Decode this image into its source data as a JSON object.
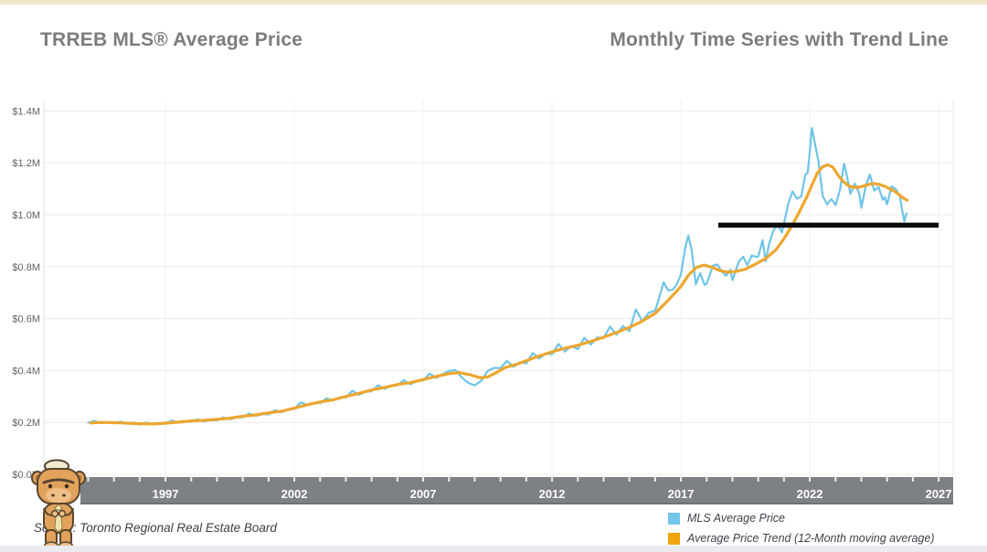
{
  "header": {
    "title_left": "TRREB MLS® Average Price",
    "title_right": "Monthly Time Series with Trend Line"
  },
  "colors": {
    "top_strip": "#efe6c9",
    "bottom_strip": "#e9ebee",
    "axis_band": "#7d8186",
    "title_gray": "#7c7c7c",
    "avg_price_blue": "#6fc4e8",
    "trend_orange": "#eda62e",
    "annotation_black": "#0a0a0a"
  },
  "legend": {
    "items": [
      {
        "label": "MLS Average Price",
        "color": "#74c6e9"
      },
      {
        "label": "Average Price Trend (12-Month moving average)",
        "color": "#f0a40e"
      }
    ]
  },
  "footer": {
    "source": "Source: Toronto Regional Real Estate Board",
    "mascot": "rhino-mascot"
  },
  "chart_data": {
    "type": "line",
    "title": "TRREB MLS® Average Price — Monthly Time Series with Trend Line",
    "grid": true,
    "legend_position": "bottom-right",
    "x_axis": {
      "range": [
        1993.7,
        2027.55
      ],
      "labeled_years": [
        1997,
        2002,
        2007,
        2012,
        2017,
        2022,
        2027
      ],
      "minor_tick_interval_years": 1
    },
    "y_axis": {
      "unit": "CAD millions",
      "range": [
        0,
        1.44
      ],
      "tick_values": [
        0,
        0.2,
        0.4,
        0.6,
        0.8,
        1.0,
        1.2,
        1.4
      ],
      "tick_labels": [
        "$0.0M",
        "$0.2M",
        "$0.4M",
        "$0.6M",
        "$0.8M",
        "$1.0M",
        "$1.2M",
        "$1.4M"
      ]
    },
    "annotation_line": {
      "label": "Trend Line",
      "value": 0.96,
      "x_start": 2018.45,
      "x_end": 2027.0,
      "color": "#0a0a0a"
    },
    "series": [
      {
        "id": "mls-average-price",
        "name": "MLS Average Price",
        "color": "#6fc4e8",
        "points": [
          [
            1994.0,
            0.199
          ],
          [
            1994.25,
            0.206
          ],
          [
            1994.5,
            0.197
          ],
          [
            1994.75,
            0.201
          ],
          [
            1995.0,
            0.197
          ],
          [
            1995.25,
            0.203
          ],
          [
            1995.5,
            0.195
          ],
          [
            1995.75,
            0.199
          ],
          [
            1996.0,
            0.192
          ],
          [
            1996.25,
            0.199
          ],
          [
            1996.5,
            0.193
          ],
          [
            1996.75,
            0.197
          ],
          [
            1997.0,
            0.196
          ],
          [
            1997.25,
            0.207
          ],
          [
            1997.5,
            0.199
          ],
          [
            1997.75,
            0.204
          ],
          [
            1998.0,
            0.203
          ],
          [
            1998.25,
            0.212
          ],
          [
            1998.5,
            0.204
          ],
          [
            1998.75,
            0.209
          ],
          [
            1999.0,
            0.208
          ],
          [
            1999.25,
            0.219
          ],
          [
            1999.5,
            0.212
          ],
          [
            1999.75,
            0.219
          ],
          [
            2000.0,
            0.22
          ],
          [
            2000.25,
            0.234
          ],
          [
            2000.5,
            0.225
          ],
          [
            2000.75,
            0.232
          ],
          [
            2001.0,
            0.231
          ],
          [
            2001.25,
            0.247
          ],
          [
            2001.5,
            0.239
          ],
          [
            2001.75,
            0.25
          ],
          [
            2002.0,
            0.252
          ],
          [
            2002.25,
            0.277
          ],
          [
            2002.5,
            0.266
          ],
          [
            2002.75,
            0.275
          ],
          [
            2003.0,
            0.274
          ],
          [
            2003.25,
            0.293
          ],
          [
            2003.5,
            0.284
          ],
          [
            2003.75,
            0.296
          ],
          [
            2004.0,
            0.296
          ],
          [
            2004.25,
            0.322
          ],
          [
            2004.5,
            0.306
          ],
          [
            2004.75,
            0.318
          ],
          [
            2005.0,
            0.32
          ],
          [
            2005.25,
            0.343
          ],
          [
            2005.5,
            0.329
          ],
          [
            2005.75,
            0.341
          ],
          [
            2006.0,
            0.343
          ],
          [
            2006.25,
            0.363
          ],
          [
            2006.5,
            0.347
          ],
          [
            2006.75,
            0.358
          ],
          [
            2007.0,
            0.362
          ],
          [
            2007.25,
            0.388
          ],
          [
            2007.5,
            0.371
          ],
          [
            2007.75,
            0.386
          ],
          [
            2008.0,
            0.398
          ],
          [
            2008.25,
            0.402
          ],
          [
            2008.5,
            0.372
          ],
          [
            2008.75,
            0.352
          ],
          [
            2009.0,
            0.343
          ],
          [
            2009.25,
            0.36
          ],
          [
            2009.5,
            0.398
          ],
          [
            2009.75,
            0.41
          ],
          [
            2010.0,
            0.409
          ],
          [
            2010.25,
            0.437
          ],
          [
            2010.5,
            0.414
          ],
          [
            2010.75,
            0.432
          ],
          [
            2011.0,
            0.427
          ],
          [
            2011.25,
            0.467
          ],
          [
            2011.5,
            0.446
          ],
          [
            2011.75,
            0.465
          ],
          [
            2012.0,
            0.463
          ],
          [
            2012.25,
            0.502
          ],
          [
            2012.5,
            0.473
          ],
          [
            2012.75,
            0.495
          ],
          [
            2013.0,
            0.482
          ],
          [
            2013.25,
            0.526
          ],
          [
            2013.5,
            0.5
          ],
          [
            2013.75,
            0.527
          ],
          [
            2014.0,
            0.526
          ],
          [
            2014.25,
            0.569
          ],
          [
            2014.5,
            0.538
          ],
          [
            2014.75,
            0.571
          ],
          [
            2015.0,
            0.552
          ],
          [
            2015.25,
            0.635
          ],
          [
            2015.5,
            0.59
          ],
          [
            2015.75,
            0.622
          ],
          [
            2016.0,
            0.631
          ],
          [
            2016.17,
            0.685
          ],
          [
            2016.33,
            0.74
          ],
          [
            2016.5,
            0.709
          ],
          [
            2016.67,
            0.71
          ],
          [
            2016.83,
            0.73
          ],
          [
            2017.0,
            0.77
          ],
          [
            2017.17,
            0.875
          ],
          [
            2017.29,
            0.92
          ],
          [
            2017.42,
            0.863
          ],
          [
            2017.58,
            0.732
          ],
          [
            2017.75,
            0.775
          ],
          [
            2017.92,
            0.73
          ],
          [
            2018.0,
            0.735
          ],
          [
            2018.25,
            0.804
          ],
          [
            2018.42,
            0.808
          ],
          [
            2018.58,
            0.782
          ],
          [
            2018.75,
            0.765
          ],
          [
            2018.92,
            0.788
          ],
          [
            2019.0,
            0.748
          ],
          [
            2019.25,
            0.82
          ],
          [
            2019.42,
            0.838
          ],
          [
            2019.58,
            0.806
          ],
          [
            2019.75,
            0.843
          ],
          [
            2019.92,
            0.838
          ],
          [
            2020.0,
            0.839
          ],
          [
            2020.17,
            0.902
          ],
          [
            2020.29,
            0.821
          ],
          [
            2020.42,
            0.887
          ],
          [
            2020.58,
            0.937
          ],
          [
            2020.75,
            0.961
          ],
          [
            2020.92,
            0.932
          ],
          [
            2021.0,
            0.967
          ],
          [
            2021.17,
            1.045
          ],
          [
            2021.33,
            1.09
          ],
          [
            2021.5,
            1.062
          ],
          [
            2021.67,
            1.07
          ],
          [
            2021.83,
            1.155
          ],
          [
            2021.92,
            1.163
          ],
          [
            2022.0,
            1.242
          ],
          [
            2022.08,
            1.334
          ],
          [
            2022.25,
            1.25
          ],
          [
            2022.33,
            1.21
          ],
          [
            2022.5,
            1.073
          ],
          [
            2022.67,
            1.04
          ],
          [
            2022.83,
            1.06
          ],
          [
            2022.92,
            1.05
          ],
          [
            2023.0,
            1.037
          ],
          [
            2023.17,
            1.096
          ],
          [
            2023.33,
            1.196
          ],
          [
            2023.42,
            1.16
          ],
          [
            2023.58,
            1.08
          ],
          [
            2023.75,
            1.12
          ],
          [
            2023.92,
            1.082
          ],
          [
            2024.0,
            1.027
          ],
          [
            2024.17,
            1.11
          ],
          [
            2024.33,
            1.155
          ],
          [
            2024.5,
            1.093
          ],
          [
            2024.67,
            1.107
          ],
          [
            2024.83,
            1.058
          ],
          [
            2024.92,
            1.067
          ],
          [
            2025.0,
            1.04
          ],
          [
            2025.17,
            1.109
          ],
          [
            2025.33,
            1.1
          ],
          [
            2025.5,
            1.07
          ],
          [
            2025.58,
            1.02
          ],
          [
            2025.67,
            0.975
          ],
          [
            2025.75,
            1.005
          ]
        ]
      },
      {
        "id": "average-price-trend",
        "name": "Average Price Trend (12-Month moving average)",
        "color": "#eda62e",
        "points": [
          [
            1994.1,
            0.198
          ],
          [
            1994.5,
            0.2
          ],
          [
            1995.0,
            0.199
          ],
          [
            1995.5,
            0.197
          ],
          [
            1996.0,
            0.195
          ],
          [
            1996.5,
            0.194
          ],
          [
            1997.0,
            0.197
          ],
          [
            1997.5,
            0.201
          ],
          [
            1998.0,
            0.206
          ],
          [
            1998.5,
            0.208
          ],
          [
            1999.0,
            0.212
          ],
          [
            1999.5,
            0.216
          ],
          [
            2000.0,
            0.224
          ],
          [
            2000.5,
            0.229
          ],
          [
            2001.0,
            0.237
          ],
          [
            2001.5,
            0.243
          ],
          [
            2002.0,
            0.255
          ],
          [
            2002.5,
            0.268
          ],
          [
            2003.0,
            0.279
          ],
          [
            2003.5,
            0.287
          ],
          [
            2004.0,
            0.3
          ],
          [
            2004.5,
            0.312
          ],
          [
            2005.0,
            0.325
          ],
          [
            2005.5,
            0.335
          ],
          [
            2006.0,
            0.346
          ],
          [
            2006.5,
            0.353
          ],
          [
            2007.0,
            0.365
          ],
          [
            2007.5,
            0.377
          ],
          [
            2008.0,
            0.388
          ],
          [
            2008.4,
            0.392
          ],
          [
            2008.8,
            0.384
          ],
          [
            2009.2,
            0.372
          ],
          [
            2009.5,
            0.375
          ],
          [
            2009.8,
            0.39
          ],
          [
            2010.2,
            0.412
          ],
          [
            2010.6,
            0.423
          ],
          [
            2011.0,
            0.438
          ],
          [
            2011.5,
            0.456
          ],
          [
            2012.0,
            0.472
          ],
          [
            2012.5,
            0.486
          ],
          [
            2013.0,
            0.497
          ],
          [
            2013.5,
            0.512
          ],
          [
            2014.0,
            0.528
          ],
          [
            2014.5,
            0.546
          ],
          [
            2015.0,
            0.566
          ],
          [
            2015.5,
            0.59
          ],
          [
            2016.0,
            0.62
          ],
          [
            2016.5,
            0.67
          ],
          [
            2017.0,
            0.724
          ],
          [
            2017.3,
            0.768
          ],
          [
            2017.6,
            0.797
          ],
          [
            2017.9,
            0.806
          ],
          [
            2018.2,
            0.798
          ],
          [
            2018.5,
            0.785
          ],
          [
            2018.8,
            0.779
          ],
          [
            2019.1,
            0.781
          ],
          [
            2019.5,
            0.79
          ],
          [
            2019.9,
            0.81
          ],
          [
            2020.3,
            0.832
          ],
          [
            2020.7,
            0.866
          ],
          [
            2021.0,
            0.908
          ],
          [
            2021.3,
            0.956
          ],
          [
            2021.6,
            1.012
          ],
          [
            2021.9,
            1.072
          ],
          [
            2022.1,
            1.118
          ],
          [
            2022.3,
            1.162
          ],
          [
            2022.5,
            1.185
          ],
          [
            2022.7,
            1.192
          ],
          [
            2022.9,
            1.183
          ],
          [
            2023.1,
            1.152
          ],
          [
            2023.3,
            1.128
          ],
          [
            2023.5,
            1.112
          ],
          [
            2023.7,
            1.105
          ],
          [
            2023.9,
            1.106
          ],
          [
            2024.1,
            1.111
          ],
          [
            2024.3,
            1.117
          ],
          [
            2024.5,
            1.12
          ],
          [
            2024.7,
            1.117
          ],
          [
            2024.9,
            1.11
          ],
          [
            2025.1,
            1.1
          ],
          [
            2025.3,
            1.09
          ],
          [
            2025.5,
            1.075
          ],
          [
            2025.65,
            1.063
          ],
          [
            2025.78,
            1.056
          ]
        ]
      }
    ]
  }
}
